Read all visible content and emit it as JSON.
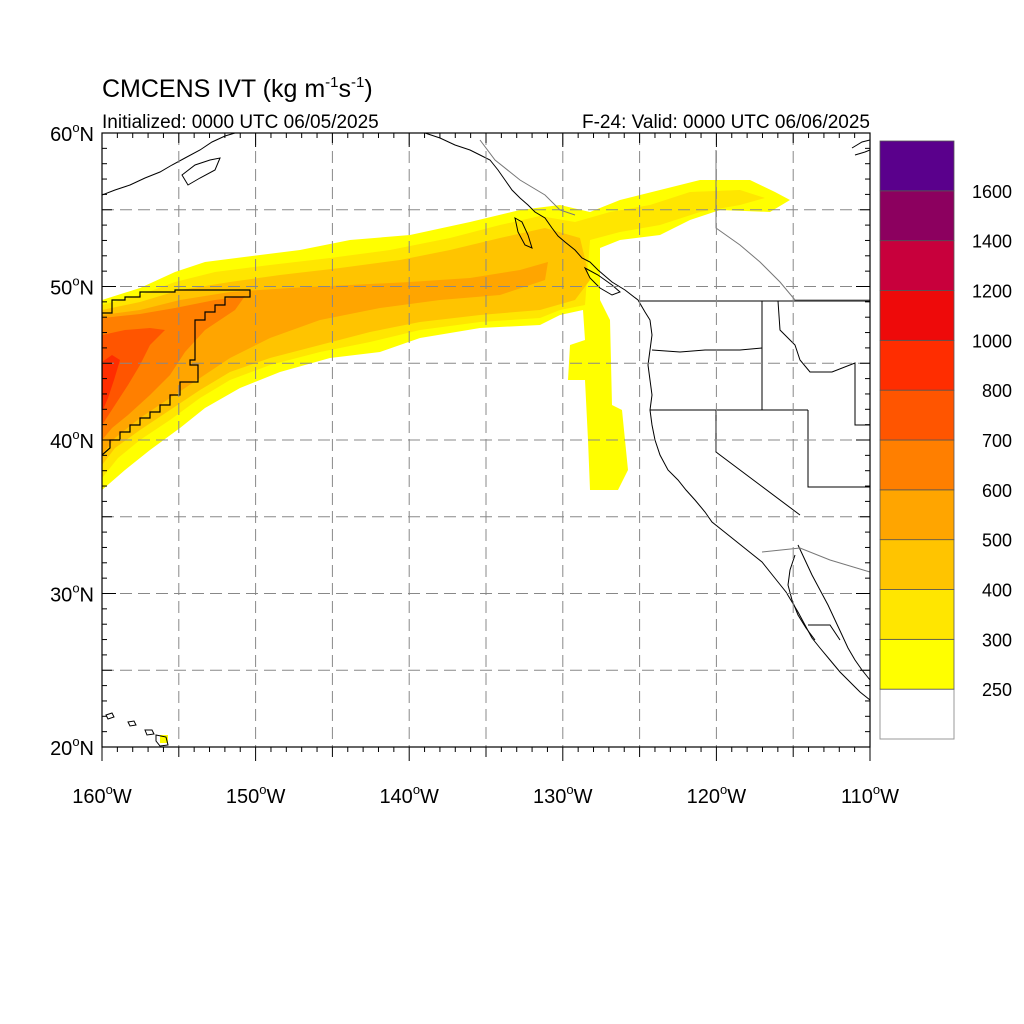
{
  "title": {
    "main": "CMCENS IVT (kg m",
    "exp1": "-1",
    "mid": "s",
    "exp2": "-1",
    "close": ")"
  },
  "subtitle_left": "Initialized: 0000 UTC 06/05/2025",
  "subtitle_right": "F-24: Valid: 0000 UTC 06/06/2025",
  "map": {
    "lon_range": [
      -160,
      -110
    ],
    "lat_range": [
      20,
      60
    ],
    "grid_lines": true,
    "grid_style": "dashed",
    "lat_labels": [
      {
        "value": 60,
        "text": "60",
        "sup": "o",
        "hemi": "N"
      },
      {
        "value": 50,
        "text": "50",
        "sup": "o",
        "hemi": "N"
      },
      {
        "value": 40,
        "text": "40",
        "sup": "o",
        "hemi": "N"
      },
      {
        "value": 30,
        "text": "30",
        "sup": "o",
        "hemi": "N"
      },
      {
        "value": 20,
        "text": "20",
        "sup": "o",
        "hemi": "N"
      }
    ],
    "lon_labels": [
      {
        "value": -160,
        "text": "160",
        "sup": "o",
        "hemi": "W"
      },
      {
        "value": -150,
        "text": "150",
        "sup": "o",
        "hemi": "W"
      },
      {
        "value": -140,
        "text": "140",
        "sup": "o",
        "hemi": "W"
      },
      {
        "value": -130,
        "text": "130",
        "sup": "o",
        "hemi": "W"
      },
      {
        "value": -120,
        "text": "120",
        "sup": "o",
        "hemi": "W"
      },
      {
        "value": -110,
        "text": "110",
        "sup": "o",
        "hemi": "W"
      }
    ]
  },
  "colorbar": {
    "placement": "right",
    "levels": [
      {
        "value": 250,
        "color": "#ffff00",
        "label": "250"
      },
      {
        "value": 300,
        "color": "#ffe600",
        "label": "300"
      },
      {
        "value": 400,
        "color": "#ffc400",
        "label": "400"
      },
      {
        "value": 500,
        "color": "#ffa500",
        "label": "500"
      },
      {
        "value": 600,
        "color": "#ff7f00",
        "label": "600"
      },
      {
        "value": 700,
        "color": "#ff5500",
        "label": "700"
      },
      {
        "value": 800,
        "color": "#ff2d00",
        "label": "800"
      },
      {
        "value": 1000,
        "color": "#ee0a0a",
        "label": "1000"
      },
      {
        "value": 1200,
        "color": "#c8003c",
        "label": "1200"
      },
      {
        "value": 1400,
        "color": "#8c005f",
        "label": "1400"
      },
      {
        "value": 1600,
        "color": "#5a008c",
        "label": "1600"
      }
    ],
    "below_min_color": "#ffffff"
  },
  "colors": {
    "land_outline": "#000000",
    "border_gray": "#777777",
    "grid": "#888888"
  }
}
